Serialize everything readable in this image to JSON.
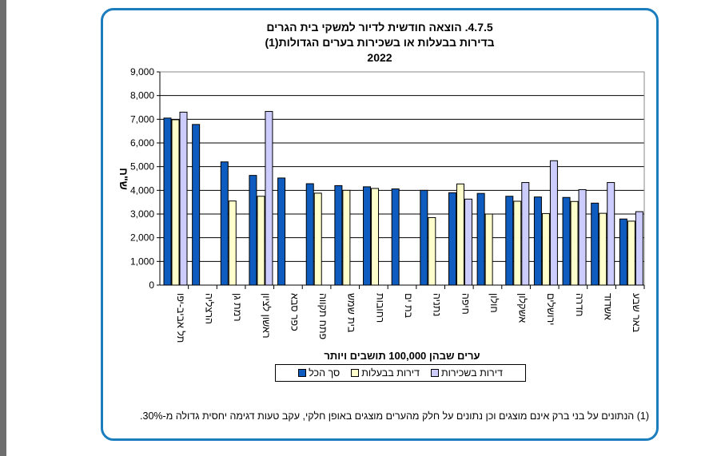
{
  "chart_data": {
    "type": "bar",
    "title_line1": "4.7.5. הוצאה חודשית לדיור למשקי בית הגרים",
    "title_line2": "בדירות בבעלות או בשכירות בערים הגדולות(1)",
    "title_line3": "2022",
    "xlabel": "ערים שבהן 100,000 תושבים ויותר",
    "ylabel": "ש\"ח",
    "ylim": [
      0,
      9000
    ],
    "yticks": [
      "0",
      "1,000",
      "2,000",
      "3,000",
      "4,000",
      "5,000",
      "6,000",
      "7,000",
      "8,000",
      "9,000"
    ],
    "grid": true,
    "legend_position": "bottom",
    "categories": [
      "תל אביב-יפו",
      "הרצליה",
      "רמת גן",
      "ראשון לציון",
      "כפר סבא",
      "פתח תקווה",
      "בית שמש",
      "רחובות",
      "בת ים",
      "נתניה",
      "חיפה",
      "חולון",
      "אשקלון",
      "ירושלים",
      "חדרה",
      "אשדוד",
      "באר שבע"
    ],
    "series": [
      {
        "name": "סך הכל",
        "color": "#0f5cc0",
        "values": [
          7050,
          6780,
          5200,
          4630,
          4520,
          4280,
          4200,
          4150,
          4060,
          4000,
          3900,
          3870,
          3750,
          3720,
          3700,
          3460,
          2790
        ]
      },
      {
        "name": "דירות בבעלות",
        "color": "#ffffcc",
        "values": [
          6980,
          null,
          3550,
          3750,
          null,
          3880,
          4000,
          4080,
          null,
          2850,
          4270,
          3000,
          3540,
          3020,
          3530,
          3030,
          2700
        ]
      },
      {
        "name": "דירות בשכירות",
        "color": "#ccccff",
        "values": [
          7300,
          null,
          null,
          7330,
          null,
          null,
          null,
          null,
          null,
          null,
          3630,
          null,
          4330,
          5250,
          4030,
          4330,
          3100
        ]
      }
    ]
  },
  "footnote": "(1) הנתונים על בני ברק אינם מוצגים וכן נתונים על חלק מהערים מוצגים באופן חלקי, עקב טעות דגימה יחסית גדולה מ-30%."
}
